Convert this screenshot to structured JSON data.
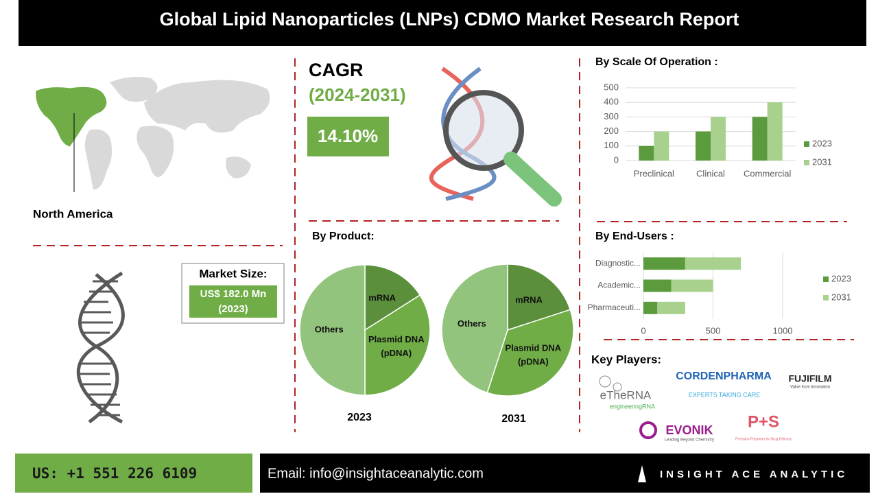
{
  "header": {
    "title": "Global Lipid Nanoparticles (LNPs) CDMO Market Research Report"
  },
  "map": {
    "region": "North America"
  },
  "cagr": {
    "label": "CAGR",
    "period": "(2024-2031)",
    "value": "14.10%"
  },
  "market_size": {
    "label": "Market Size:",
    "value": "US$ 182.0 Mn",
    "year": "(2023)"
  },
  "product": {
    "title": "By Product:"
  },
  "key_players": {
    "title": "Key Players:",
    "logos": [
      {
        "name": "eTheRNA",
        "tagline": "engineeringRNA"
      },
      {
        "name": "CORDENPHARMA",
        "tagline": "EXPERTS TAKING CARE"
      },
      {
        "name": "FUJIFILM",
        "tagline": "Value from Innovation"
      },
      {
        "name": "EVONIK",
        "tagline": "Leading Beyond Chemistry"
      },
      {
        "name": "P+S",
        "tagline": "Precision Polymers for Drug Delivery"
      }
    ]
  },
  "footer": {
    "phone": "US: +1 551 226 6109",
    "email": "Email: info@insightaceanalytic.com",
    "brand": "INSIGHT ACE ANALYTIC"
  },
  "chart_data": [
    {
      "type": "bar",
      "title": "By Scale Of Operation :",
      "categories": [
        "Preclinical",
        "Clinical",
        "Commercial"
      ],
      "series": [
        {
          "name": "2023",
          "color": "#5b9b3d",
          "values": [
            100,
            200,
            300
          ]
        },
        {
          "name": "2031",
          "color": "#a9d18e",
          "values": [
            200,
            300,
            400
          ]
        }
      ],
      "ylim": [
        0,
        500
      ],
      "yticks": [
        0,
        100,
        200,
        300,
        400,
        500
      ],
      "grid": true
    },
    {
      "type": "pie",
      "title": "2023",
      "categories": [
        "mRNA",
        "Plasmid DNA (pDNA)",
        "Others"
      ],
      "values": [
        16,
        34,
        50
      ],
      "colors": [
        "#5b8f3c",
        "#70ad47",
        "#93c47d"
      ]
    },
    {
      "type": "pie",
      "title": "2031",
      "categories": [
        "mRNA",
        "Plasmid DNA (pDNA)",
        "Others"
      ],
      "values": [
        20,
        35,
        45
      ],
      "colors": [
        "#5b8f3c",
        "#70ad47",
        "#93c47d"
      ]
    },
    {
      "type": "bar",
      "orientation": "horizontal",
      "stacked": true,
      "title": "By End-Users :",
      "categories": [
        "Diagnostic...",
        "Academic...",
        "Pharmaceuti..."
      ],
      "series": [
        {
          "name": "2023",
          "color": "#5b9b3d",
          "values": [
            300,
            200,
            100
          ]
        },
        {
          "name": "2031",
          "color": "#a9d18e",
          "values": [
            400,
            300,
            200
          ]
        }
      ],
      "xlim": [
        0,
        1000
      ],
      "xticks": [
        0,
        500,
        1000
      ],
      "grid": true
    }
  ]
}
